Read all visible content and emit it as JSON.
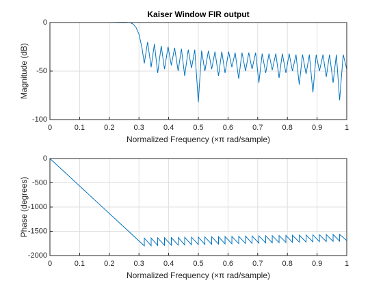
{
  "chart_data": [
    {
      "type": "line",
      "title": "Kaiser Window FIR output",
      "xlabel": "Normalized Frequency  (×π rad/sample)",
      "ylabel": "Magnitude (dB)",
      "x": [
        0,
        0.05,
        0.1,
        0.15,
        0.2,
        0.25,
        0.27,
        0.28,
        0.29,
        0.3,
        0.31,
        0.318,
        0.329,
        0.341,
        0.352,
        0.363,
        0.375,
        0.386,
        0.398,
        0.409,
        0.42,
        0.432,
        0.443,
        0.454,
        0.466,
        0.477,
        0.488,
        0.5,
        0.511,
        0.522,
        0.534,
        0.545,
        0.556,
        0.568,
        0.579,
        0.59,
        0.602,
        0.613,
        0.624,
        0.636,
        0.647,
        0.659,
        0.67,
        0.681,
        0.693,
        0.704,
        0.715,
        0.727,
        0.738,
        0.749,
        0.761,
        0.772,
        0.783,
        0.795,
        0.806,
        0.817,
        0.829,
        0.84,
        0.851,
        0.863,
        0.874,
        0.886,
        0.897,
        0.908,
        0.92,
        0.931,
        0.942,
        0.954,
        0.965,
        0.976,
        0.988,
        1
      ],
      "series": [
        {
          "color": "#0072bd",
          "values": [
            0,
            0,
            0,
            0,
            0,
            0.3,
            0,
            -1.5,
            -5,
            -12,
            -26,
            -42,
            -20,
            -46,
            -22,
            -52,
            -24,
            -48,
            -25,
            -44,
            -26,
            -50,
            -27,
            -55,
            -28,
            -47,
            -28,
            -82,
            -29,
            -50,
            -29,
            -48,
            -30,
            -55,
            -30,
            -52,
            -30,
            -46,
            -31,
            -58,
            -31,
            -50,
            -31,
            -48,
            -31,
            -62,
            -32,
            -52,
            -32,
            -49,
            -32,
            -57,
            -32,
            -52,
            -32,
            -50,
            -33,
            -64,
            -33,
            -53,
            -33,
            -72,
            -33,
            -50,
            -33,
            -56,
            -33,
            -62,
            -33,
            -80,
            -33,
            -48
          ]
        }
      ],
      "xlim": [
        0,
        1
      ],
      "ylim": [
        -100,
        0
      ],
      "xticks": [
        0,
        0.1,
        0.2,
        0.3,
        0.4,
        0.5,
        0.6,
        0.7,
        0.8,
        0.9,
        1
      ],
      "yticks": [
        -100,
        -50,
        0
      ],
      "grid": true
    },
    {
      "type": "line",
      "xlabel": "Normalized Frequency  (×π rad/sample)",
      "ylabel": "Phase (degrees)",
      "x": [
        0,
        0.318,
        0.318,
        0.341,
        0.341,
        0.363,
        0.363,
        0.386,
        0.386,
        0.409,
        0.409,
        0.432,
        0.432,
        0.454,
        0.454,
        0.477,
        0.477,
        0.5,
        0.5,
        0.522,
        0.522,
        0.545,
        0.545,
        0.568,
        0.568,
        0.59,
        0.59,
        0.613,
        0.613,
        0.636,
        0.636,
        0.659,
        0.659,
        0.681,
        0.681,
        0.704,
        0.704,
        0.727,
        0.727,
        0.749,
        0.749,
        0.772,
        0.772,
        0.795,
        0.795,
        0.817,
        0.817,
        0.84,
        0.84,
        0.863,
        0.863,
        0.886,
        0.886,
        0.908,
        0.908,
        0.931,
        0.931,
        0.954,
        0.954,
        0.976,
        0.976,
        1
      ],
      "series": [
        {
          "color": "#0072bd",
          "values": [
            0,
            -1800,
            -1640,
            -1797,
            -1637,
            -1793,
            -1635,
            -1790,
            -1632,
            -1787,
            -1629,
            -1783,
            -1627,
            -1780,
            -1624,
            -1777,
            -1621,
            -1773,
            -1619,
            -1770,
            -1616,
            -1767,
            -1613,
            -1763,
            -1611,
            -1760,
            -1608,
            -1757,
            -1605,
            -1753,
            -1603,
            -1750,
            -1600,
            -1747,
            -1597,
            -1743,
            -1595,
            -1740,
            -1592,
            -1737,
            -1589,
            -1733,
            -1587,
            -1730,
            -1584,
            -1727,
            -1581,
            -1723,
            -1579,
            -1720,
            -1576,
            -1717,
            -1573,
            -1713,
            -1571,
            -1710,
            -1568,
            -1707,
            -1565,
            -1703,
            -1563,
            -1690
          ]
        }
      ],
      "xlim": [
        0,
        1
      ],
      "ylim": [
        -2000,
        0
      ],
      "xticks": [
        0,
        0.1,
        0.2,
        0.3,
        0.4,
        0.5,
        0.6,
        0.7,
        0.8,
        0.9,
        1
      ],
      "yticks": [
        -2000,
        -1500,
        -1000,
        -500,
        0
      ],
      "grid": true
    }
  ]
}
